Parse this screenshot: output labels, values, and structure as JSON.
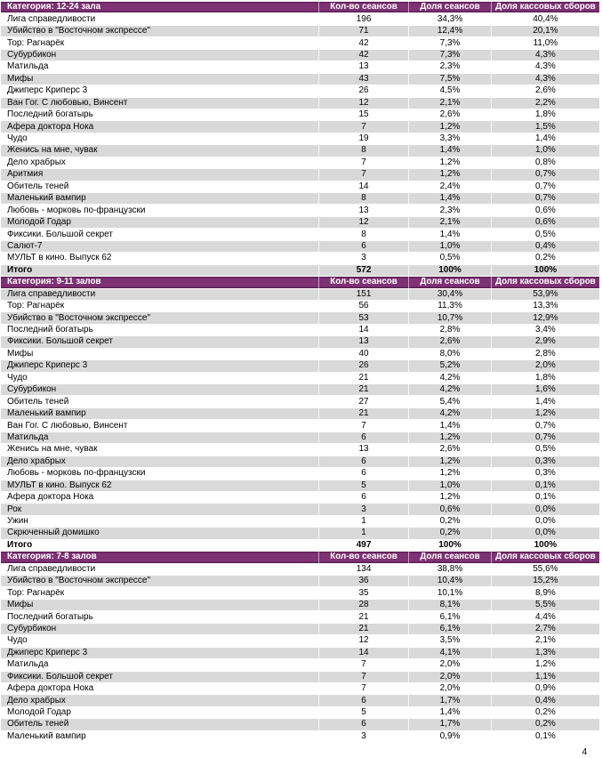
{
  "page_number": "4",
  "colors": {
    "accent_purple": "#7D3273",
    "band_gray": "#D9D9D9",
    "header_text": "#ffffff",
    "body_text": "#000000"
  },
  "value_columns": [
    "Кол-во сеансов",
    "Доля сеансов",
    "Доля кассовых сборов"
  ],
  "total_label": "Итого",
  "tables": [
    {
      "category_label": "Категория: 12-24 зала",
      "rows": [
        [
          "Лига справедливости",
          "196",
          "34,3%",
          "40,4%"
        ],
        [
          "Убийство в \"Восточном экспрессе\"",
          "71",
          "12,4%",
          "20,1%"
        ],
        [
          "Тор: Рагнарёк",
          "42",
          "7,3%",
          "11,0%"
        ],
        [
          "Субурбикон",
          "42",
          "7,3%",
          "4,3%"
        ],
        [
          "Матильда",
          "13",
          "2,3%",
          "4,3%"
        ],
        [
          "Мифы",
          "43",
          "7,5%",
          "4,3%"
        ],
        [
          "Джиперс Криперс 3",
          "26",
          "4,5%",
          "2,6%"
        ],
        [
          "Ван Гог. С любовью, Винсент",
          "12",
          "2,1%",
          "2,2%"
        ],
        [
          "Последний богатырь",
          "15",
          "2,6%",
          "1,8%"
        ],
        [
          "Афера доктора Нока",
          "7",
          "1,2%",
          "1,5%"
        ],
        [
          "Чудо",
          "19",
          "3,3%",
          "1,4%"
        ],
        [
          "Женись на мне, чувак",
          "8",
          "1,4%",
          "1,0%"
        ],
        [
          "Дело храбрых",
          "7",
          "1,2%",
          "0,8%"
        ],
        [
          "Аритмия",
          "7",
          "1,2%",
          "0,7%"
        ],
        [
          "Обитель теней",
          "14",
          "2,4%",
          "0,7%"
        ],
        [
          "Маленький вампир",
          "8",
          "1,4%",
          "0,7%"
        ],
        [
          "Любовь - морковь по-французски",
          "13",
          "2,3%",
          "0,6%"
        ],
        [
          "Молодой Годар",
          "12",
          "2,1%",
          "0,6%"
        ],
        [
          "Фиксики. Большой секрет",
          "8",
          "1,4%",
          "0,5%"
        ],
        [
          "Салют-7",
          "6",
          "1,0%",
          "0,4%"
        ],
        [
          "МУЛЬТ в кино. Выпуск 62",
          "3",
          "0,5%",
          "0,2%"
        ]
      ],
      "total": [
        "Итого",
        "572",
        "100%",
        "100%"
      ]
    },
    {
      "category_label": "Категория: 9-11 залов",
      "rows": [
        [
          "Лига справедливости",
          "151",
          "30,4%",
          "53,9%"
        ],
        [
          "Тор: Рагнарёк",
          "56",
          "11,3%",
          "13,3%"
        ],
        [
          "Убийство в \"Восточном экспрессе\"",
          "53",
          "10,7%",
          "12,9%"
        ],
        [
          "Последний богатырь",
          "14",
          "2,8%",
          "3,4%"
        ],
        [
          "Фиксики. Большой секрет",
          "13",
          "2,6%",
          "2,9%"
        ],
        [
          "Мифы",
          "40",
          "8,0%",
          "2,8%"
        ],
        [
          "Джиперс Криперс 3",
          "26",
          "5,2%",
          "2,0%"
        ],
        [
          "Чудо",
          "21",
          "4,2%",
          "1,8%"
        ],
        [
          "Субурбикон",
          "21",
          "4,2%",
          "1,6%"
        ],
        [
          "Обитель теней",
          "27",
          "5,4%",
          "1,4%"
        ],
        [
          "Маленький вампир",
          "21",
          "4,2%",
          "1,2%"
        ],
        [
          "Ван Гог. С любовью, Винсент",
          "7",
          "1,4%",
          "0,7%"
        ],
        [
          "Матильда",
          "6",
          "1,2%",
          "0,7%"
        ],
        [
          "Женись на мне, чувак",
          "13",
          "2,6%",
          "0,5%"
        ],
        [
          "Дело храбрых",
          "6",
          "1,2%",
          "0,3%"
        ],
        [
          "Любовь - морковь по-французски",
          "6",
          "1,2%",
          "0,3%"
        ],
        [
          "МУЛЬТ в кино. Выпуск 62",
          "5",
          "1,0%",
          "0,1%"
        ],
        [
          "Афера доктора Нока",
          "6",
          "1,2%",
          "0,1%"
        ],
        [
          "Рок",
          "3",
          "0,6%",
          "0,0%"
        ],
        [
          "Ужин",
          "1",
          "0,2%",
          "0,0%"
        ],
        [
          "Скрюченный домишко",
          "1",
          "0,2%",
          "0,0%"
        ]
      ],
      "total": [
        "Итого",
        "497",
        "100%",
        "100%"
      ]
    },
    {
      "category_label": "Категория: 7-8 залов",
      "rows": [
        [
          "Лига справедливости",
          "134",
          "38,8%",
          "55,6%"
        ],
        [
          "Убийство в \"Восточном экспрессе\"",
          "36",
          "10,4%",
          "15,2%"
        ],
        [
          "Тор: Рагнарёк",
          "35",
          "10,1%",
          "8,9%"
        ],
        [
          "Мифы",
          "28",
          "8,1%",
          "5,5%"
        ],
        [
          "Последний богатырь",
          "21",
          "6,1%",
          "4,4%"
        ],
        [
          "Субурбикон",
          "21",
          "6,1%",
          "2,7%"
        ],
        [
          "Чудо",
          "12",
          "3,5%",
          "2,1%"
        ],
        [
          "Джиперс Криперс 3",
          "14",
          "4,1%",
          "1,3%"
        ],
        [
          "Матильда",
          "7",
          "2,0%",
          "1,2%"
        ],
        [
          "Фиксики. Большой секрет",
          "7",
          "2,0%",
          "1,1%"
        ],
        [
          "Афера доктора Нока",
          "7",
          "2,0%",
          "0,9%"
        ],
        [
          "Дело храбрых",
          "6",
          "1,7%",
          "0,4%"
        ],
        [
          "Молодой Годар",
          "5",
          "1,4%",
          "0,2%"
        ],
        [
          "Обитель теней",
          "6",
          "1,7%",
          "0,2%"
        ],
        [
          "Маленький вампир",
          "3",
          "0,9%",
          "0,1%"
        ]
      ],
      "total": null
    }
  ]
}
